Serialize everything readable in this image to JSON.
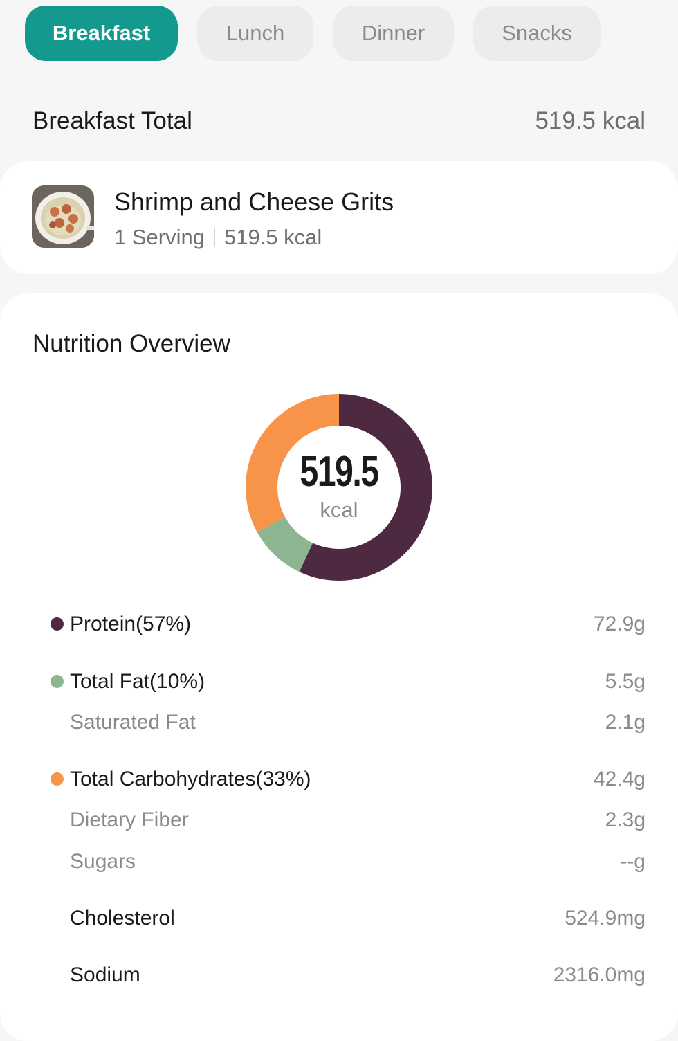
{
  "tabs": [
    {
      "label": "Breakfast",
      "active": true
    },
    {
      "label": "Lunch",
      "active": false
    },
    {
      "label": "Dinner",
      "active": false
    },
    {
      "label": "Snacks",
      "active": false
    }
  ],
  "summary": {
    "label": "Breakfast Total",
    "value": "519.5 kcal"
  },
  "food": {
    "name": "Shrimp and Cheese Grits",
    "serving": "1 Serving",
    "kcal": "519.5 kcal"
  },
  "nutrition": {
    "title": "Nutrition Overview",
    "total_value": "519.5",
    "total_unit": "kcal",
    "colors": {
      "protein": "#4e2942",
      "fat": "#8db592",
      "carbs": "#f8944a",
      "accent": "#14998f"
    },
    "macro_shares": [
      {
        "name": "Protein",
        "percent": 57,
        "color": "#4e2942"
      },
      {
        "name": "Total Fat",
        "percent": 10,
        "color": "#8db592"
      },
      {
        "name": "Total Carbohydrates",
        "percent": 33,
        "color": "#f8944a"
      }
    ],
    "rows": [
      {
        "label": "Protein(57%)",
        "value": "72.9g"
      },
      {
        "label": "Total Fat(10%)",
        "value": "5.5g"
      },
      {
        "label": "Saturated Fat",
        "value": "2.1g"
      },
      {
        "label": "Total Carbohydrates(33%)",
        "value": "42.4g"
      },
      {
        "label": "Dietary Fiber",
        "value": "2.3g"
      },
      {
        "label": "Sugars",
        "value": "--g"
      },
      {
        "label": "Cholesterol",
        "value": "524.9mg"
      },
      {
        "label": "Sodium",
        "value": "2316.0mg"
      }
    ]
  }
}
